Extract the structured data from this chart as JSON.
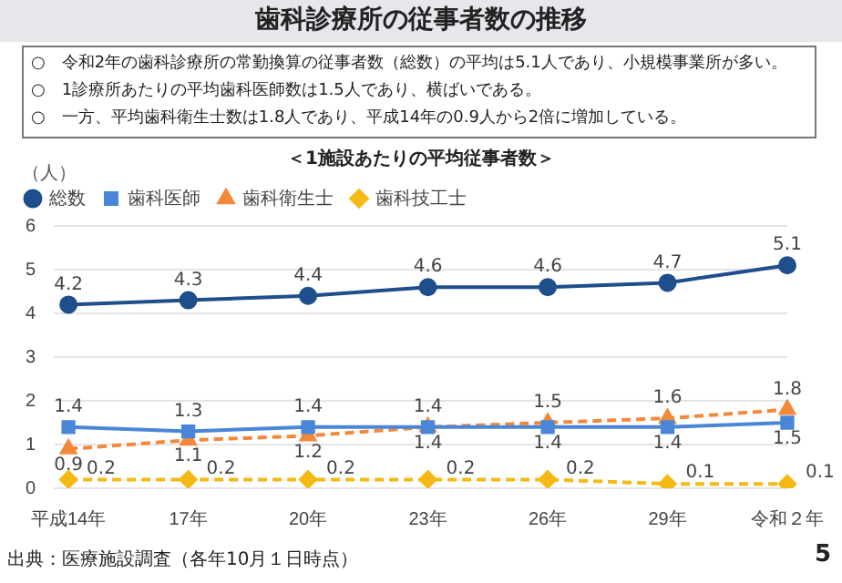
{
  "chart_data": {
    "type": "line",
    "title": "歯科診療所の従事者数の推移",
    "subtitle": "＜1施設あたりの平均従事者数＞",
    "ylabel": "（人）",
    "annotations": [
      "○　令和2年の歯科診療所の常勤換算の従事者数（総数）の平均は5.1人であり、小規模事業所が多い。",
      "○　1診療所あたりの平均歯科医師数は1.5人であり、横ばいである。",
      "○　一方、平均歯科衛生士数は1.8人であり、平成14年の0.9人から2倍に増加している。",
      "出典：医療施設調査（各年10月１日時点）",
      "5"
    ],
    "categories": [
      "平成14年",
      "17年",
      "20年",
      "23年",
      "26年",
      "29年",
      "令和２年"
    ],
    "series": [
      {
        "name": "総数",
        "color": "#1f4e8c",
        "values": [
          4.2,
          4.3,
          4.4,
          4.6,
          4.6,
          4.7,
          5.1
        ],
        "marker": "circle",
        "line_style": "solid"
      },
      {
        "name": "歯科医師",
        "color": "#4a86d8",
        "values": [
          1.4,
          1.3,
          1.4,
          1.4,
          1.4,
          1.4,
          1.5
        ],
        "marker": "square",
        "line_style": "solid"
      },
      {
        "name": "歯科衛生士",
        "color": "#f4883a",
        "values": [
          0.9,
          1.1,
          1.2,
          1.4,
          1.5,
          1.6,
          1.8
        ],
        "marker": "triangle",
        "line_style": "dashed"
      },
      {
        "name": "歯科技工士",
        "color": "#f5b914",
        "values": [
          0.2,
          0.2,
          0.2,
          0.2,
          0.2,
          0.1,
          0.1
        ],
        "marker": "diamond",
        "line_style": "dashed"
      }
    ],
    "ylim": [
      0,
      6
    ],
    "yticks": [
      0,
      1,
      2,
      3,
      4,
      5,
      6
    ],
    "grid": "y",
    "legend": "top left",
    "data_labels": true
  }
}
